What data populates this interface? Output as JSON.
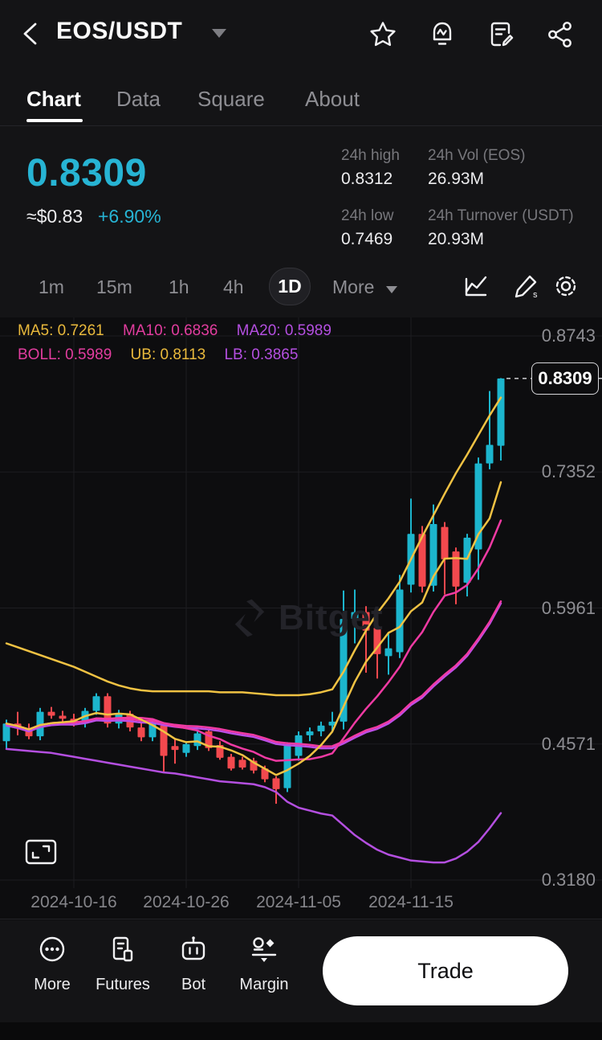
{
  "header": {
    "title": "EOS/USDT"
  },
  "tabs": {
    "items": [
      "Chart",
      "Data",
      "Square",
      "About"
    ],
    "active": "Chart"
  },
  "price": {
    "last": "0.8309",
    "fiat": "≈$0.83",
    "change": "+6.90%"
  },
  "stats": {
    "high_label": "24h high",
    "high": "0.8312",
    "vol_label": "24h Vol (EOS)",
    "vol": "26.93M",
    "low_label": "24h low",
    "low": "0.7469",
    "turnover_label": "24h Turnover (USDT)",
    "turnover": "20.93M"
  },
  "timeframes": {
    "items": [
      "1m",
      "15m",
      "1h",
      "4h"
    ],
    "active": "1D",
    "more_label": "More"
  },
  "chart": {
    "ma5_label": "MA5: 0.7261",
    "ma10_label": "MA10: 0.6836",
    "ma20_label": "MA20: 0.5989",
    "boll_label": "BOLL: 0.5989",
    "ub_label": "UB: 0.8113",
    "lb_label": "LB: 0.3865",
    "price_tag": "0.8309",
    "watermark": "Bitget"
  },
  "chart_data": {
    "type": "candlestick",
    "symbol": "EOS/USDT",
    "interval": "1D",
    "title": "EOS/USDT 1D candlestick chart with MA5/MA10/MA20 and Bollinger Bands",
    "y_axis": {
      "ticks": [
        "0.8743",
        "0.7352",
        "0.5961",
        "0.4571",
        "0.3180"
      ],
      "top_value": 0.8743,
      "bottom_value": 0.318
    },
    "x_axis": {
      "tick_labels": [
        "2024-10-16",
        "2024-10-26",
        "2024-11-05",
        "2024-11-15"
      ],
      "tick_indices": [
        6,
        16,
        26,
        36
      ]
    },
    "last_price": 0.8309,
    "dates": [
      "2024-10-10",
      "2024-10-11",
      "2024-10-12",
      "2024-10-13",
      "2024-10-14",
      "2024-10-15",
      "2024-10-16",
      "2024-10-17",
      "2024-10-18",
      "2024-10-19",
      "2024-10-20",
      "2024-10-21",
      "2024-10-22",
      "2024-10-23",
      "2024-10-24",
      "2024-10-25",
      "2024-10-26",
      "2024-10-27",
      "2024-10-28",
      "2024-10-29",
      "2024-10-30",
      "2024-10-31",
      "2024-11-01",
      "2024-11-02",
      "2024-11-03",
      "2024-11-04",
      "2024-11-05",
      "2024-11-06",
      "2024-11-07",
      "2024-11-08",
      "2024-11-09",
      "2024-11-10",
      "2024-11-11",
      "2024-11-12",
      "2024-11-13",
      "2024-11-14",
      "2024-11-15",
      "2024-11-16",
      "2024-11-17",
      "2024-11-18",
      "2024-11-19",
      "2024-11-20",
      "2024-11-21",
      "2024-11-22",
      "2024-11-23"
    ],
    "ohlc": [
      [
        0.46,
        0.482,
        0.452,
        0.478
      ],
      [
        0.478,
        0.49,
        0.466,
        0.473
      ],
      [
        0.473,
        0.478,
        0.462,
        0.465
      ],
      [
        0.465,
        0.494,
        0.461,
        0.49
      ],
      [
        0.49,
        0.495,
        0.483,
        0.486
      ],
      [
        0.486,
        0.491,
        0.48,
        0.483
      ],
      [
        0.483,
        0.488,
        0.475,
        0.478
      ],
      [
        0.478,
        0.494,
        0.474,
        0.491
      ],
      [
        0.491,
        0.509,
        0.487,
        0.506
      ],
      [
        0.506,
        0.509,
        0.474,
        0.478
      ],
      [
        0.478,
        0.492,
        0.473,
        0.488
      ],
      [
        0.488,
        0.491,
        0.47,
        0.474
      ],
      [
        0.474,
        0.48,
        0.46,
        0.464
      ],
      [
        0.464,
        0.48,
        0.46,
        0.478
      ],
      [
        0.476,
        0.479,
        0.429,
        0.445
      ],
      [
        0.455,
        0.462,
        0.437,
        0.451
      ],
      [
        0.448,
        0.459,
        0.444,
        0.457
      ],
      [
        0.455,
        0.47,
        0.451,
        0.468
      ],
      [
        0.47,
        0.472,
        0.45,
        0.453
      ],
      [
        0.456,
        0.46,
        0.441,
        0.443
      ],
      [
        0.444,
        0.447,
        0.43,
        0.432
      ],
      [
        0.441,
        0.444,
        0.431,
        0.433
      ],
      [
        0.44,
        0.443,
        0.427,
        0.43
      ],
      [
        0.432,
        0.435,
        0.418,
        0.421
      ],
      [
        0.422,
        0.424,
        0.396,
        0.411
      ],
      [
        0.412,
        0.459,
        0.408,
        0.457
      ],
      [
        0.445,
        0.47,
        0.44,
        0.466
      ],
      [
        0.466,
        0.474,
        0.46,
        0.47
      ],
      [
        0.47,
        0.48,
        0.465,
        0.476
      ],
      [
        0.476,
        0.49,
        0.47,
        0.48
      ],
      [
        0.48,
        0.614,
        0.472,
        0.585
      ],
      [
        0.585,
        0.615,
        0.56,
        0.592
      ],
      [
        0.592,
        0.598,
        0.53,
        0.573
      ],
      [
        0.576,
        0.58,
        0.524,
        0.549
      ],
      [
        0.547,
        0.57,
        0.528,
        0.555
      ],
      [
        0.551,
        0.63,
        0.545,
        0.615
      ],
      [
        0.62,
        0.708,
        0.612,
        0.672
      ],
      [
        0.672,
        0.68,
        0.612,
        0.618
      ],
      [
        0.619,
        0.702,
        0.613,
        0.682
      ],
      [
        0.679,
        0.684,
        0.61,
        0.646
      ],
      [
        0.654,
        0.658,
        0.6,
        0.618
      ],
      [
        0.622,
        0.672,
        0.608,
        0.668
      ],
      [
        0.656,
        0.75,
        0.625,
        0.744
      ],
      [
        0.744,
        0.818,
        0.738,
        0.763
      ],
      [
        0.762,
        0.8312,
        0.7469,
        0.8309
      ]
    ],
    "overlays": {
      "ma_periods": [
        5,
        10,
        20
      ],
      "current_values": {
        "MA5": 0.7261,
        "MA10": 0.6836,
        "MA20": 0.5989,
        "BOLL": 0.5989,
        "UB": 0.8113,
        "LB": 0.3865
      },
      "boll_upper": [
        0.56,
        0.556,
        0.552,
        0.548,
        0.544,
        0.54,
        0.536,
        0.531,
        0.526,
        0.521,
        0.517,
        0.514,
        0.512,
        0.511,
        0.511,
        0.511,
        0.511,
        0.511,
        0.511,
        0.51,
        0.51,
        0.51,
        0.509,
        0.508,
        0.507,
        0.507,
        0.507,
        0.508,
        0.51,
        0.513,
        0.531,
        0.553,
        0.573,
        0.591,
        0.606,
        0.623,
        0.646,
        0.669,
        0.691,
        0.713,
        0.734,
        0.753,
        0.773,
        0.793,
        0.8113
      ],
      "boll_lower": [
        0.452,
        0.451,
        0.45,
        0.449,
        0.448,
        0.446,
        0.444,
        0.442,
        0.44,
        0.438,
        0.436,
        0.434,
        0.432,
        0.43,
        0.428,
        0.427,
        0.425,
        0.423,
        0.421,
        0.419,
        0.418,
        0.417,
        0.416,
        0.413,
        0.408,
        0.398,
        0.392,
        0.389,
        0.386,
        0.384,
        0.374,
        0.364,
        0.356,
        0.349,
        0.344,
        0.341,
        0.338,
        0.337,
        0.336,
        0.336,
        0.34,
        0.347,
        0.357,
        0.371,
        0.3865
      ]
    },
    "colors": {
      "up": "#1cb5cd",
      "down": "#f2494e",
      "ma5": "#f0c243",
      "ma10": "#f03aa3",
      "ma20": "#bc4ee6",
      "boll_mid": "#f03aa3",
      "boll_upper": "#f0c243",
      "boll_lower": "#b44fe0",
      "grid": "#1d1d21",
      "dash": "#d0d0d4"
    }
  },
  "bottom_nav": {
    "items": [
      {
        "label": "More"
      },
      {
        "label": "Futures"
      },
      {
        "label": "Bot"
      },
      {
        "label": "Margin"
      }
    ],
    "trade_label": "Trade"
  }
}
